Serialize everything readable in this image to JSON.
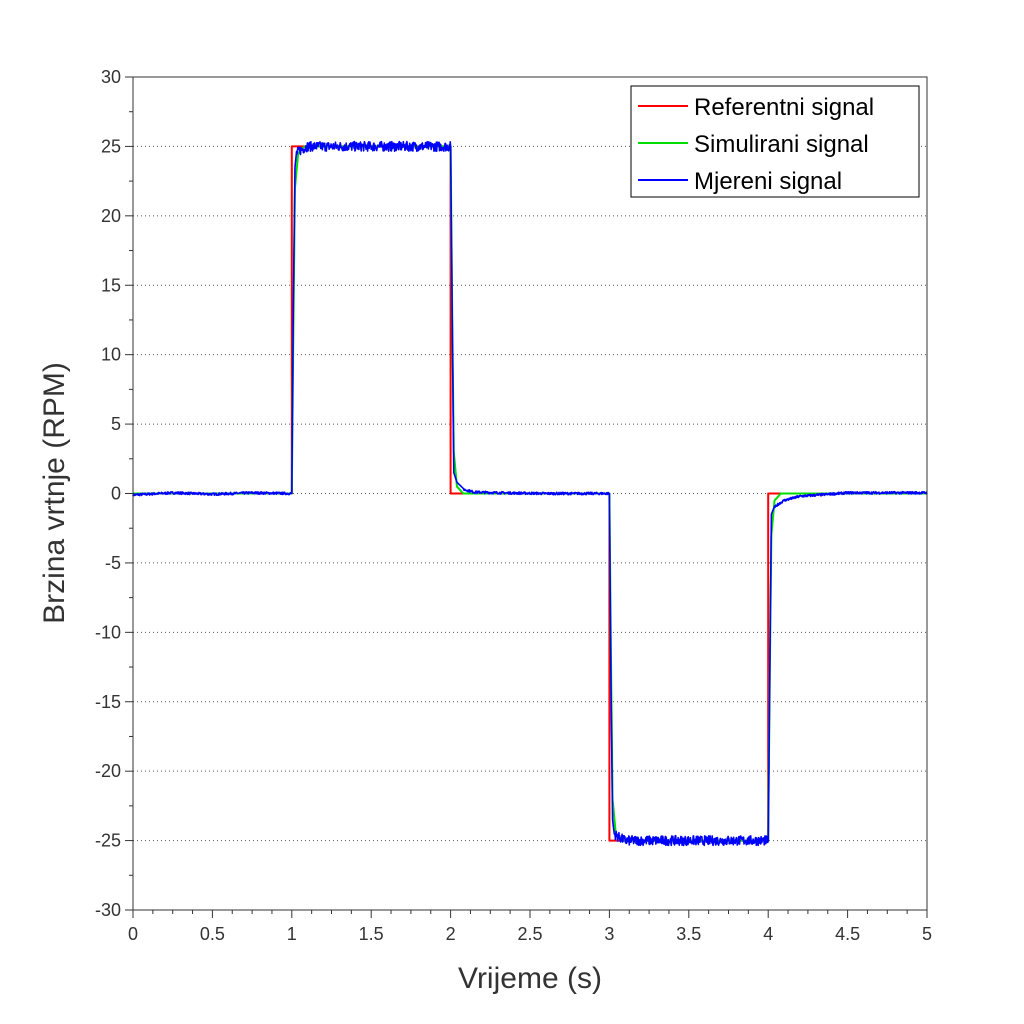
{
  "chart_data": {
    "type": "line",
    "title": "",
    "xlabel": "Vrijeme (s)",
    "ylabel": "Brzina vrtnje (RPM)",
    "xlim": [
      0,
      5
    ],
    "ylim": [
      -30,
      30
    ],
    "xticks": [
      0,
      0.5,
      1,
      1.5,
      2,
      2.5,
      3,
      3.5,
      4,
      4.5,
      5
    ],
    "xtick_labels": [
      "0",
      "0.5",
      "1",
      "1.5",
      "2",
      "2.5",
      "3",
      "3.5",
      "4",
      "4.5",
      "5"
    ],
    "yticks": [
      -30,
      -25,
      -20,
      -15,
      -10,
      -5,
      0,
      5,
      10,
      15,
      20,
      25,
      30
    ],
    "ytick_labels": [
      "-30",
      "-25",
      "-20",
      "-15",
      "-10",
      "-5",
      "0",
      "5",
      "10",
      "15",
      "20",
      "25",
      "30"
    ],
    "grid": true,
    "legend_position": "top-right",
    "series": [
      {
        "name": "Referentni signal",
        "color": "#ff0000",
        "x": [
          0,
          1.0,
          1.0,
          2.0,
          2.0,
          3.0,
          3.0,
          4.0,
          4.0,
          5.0
        ],
        "y": [
          0,
          0,
          25,
          25,
          0,
          0,
          -25,
          -25,
          0,
          0
        ]
      },
      {
        "name": "Simulirani signal",
        "color": "#00dd00",
        "x": [
          0,
          1.0,
          1.01,
          1.02,
          1.04,
          1.08,
          2.0,
          2.01,
          2.02,
          2.04,
          2.08,
          3.0,
          3.01,
          3.02,
          3.04,
          3.08,
          4.0,
          4.01,
          4.02,
          4.04,
          4.08,
          5.0
        ],
        "y": [
          0,
          0,
          12,
          22,
          24.5,
          25,
          25,
          13,
          3,
          0.5,
          0,
          0,
          -12,
          -22,
          -24.5,
          -25,
          -25,
          -13,
          -3,
          -0.5,
          0,
          0
        ]
      },
      {
        "name": "Mjereni signal",
        "color": "#0000ff",
        "x": [
          0,
          0.25,
          0.5,
          0.75,
          0.99,
          1.0,
          1.01,
          1.02,
          1.03,
          1.05,
          1.1,
          1.3,
          1.5,
          1.7,
          1.9,
          1.99,
          2.0,
          2.01,
          2.02,
          2.04,
          2.08,
          2.15,
          2.3,
          2.6,
          2.99,
          3.0,
          3.01,
          3.02,
          3.03,
          3.05,
          3.1,
          3.3,
          3.5,
          3.7,
          3.9,
          3.99,
          4.0,
          4.01,
          4.02,
          4.04,
          4.06,
          4.1,
          4.2,
          4.5,
          5.0
        ],
        "y": [
          -0.1,
          0.05,
          -0.05,
          0.05,
          0,
          0,
          14,
          23.5,
          24.5,
          24.7,
          25,
          25,
          25,
          25,
          25,
          25,
          25,
          13,
          1.5,
          0.8,
          0.3,
          0.1,
          0.05,
          0,
          0,
          0,
          -14,
          -23.5,
          -24.5,
          -24.7,
          -25,
          -25,
          -25,
          -25,
          -25,
          -25,
          -25,
          -13,
          -1.5,
          -1.0,
          -0.8,
          -0.5,
          -0.2,
          0.05,
          0.05
        ],
        "noise": 0.35
      }
    ]
  }
}
